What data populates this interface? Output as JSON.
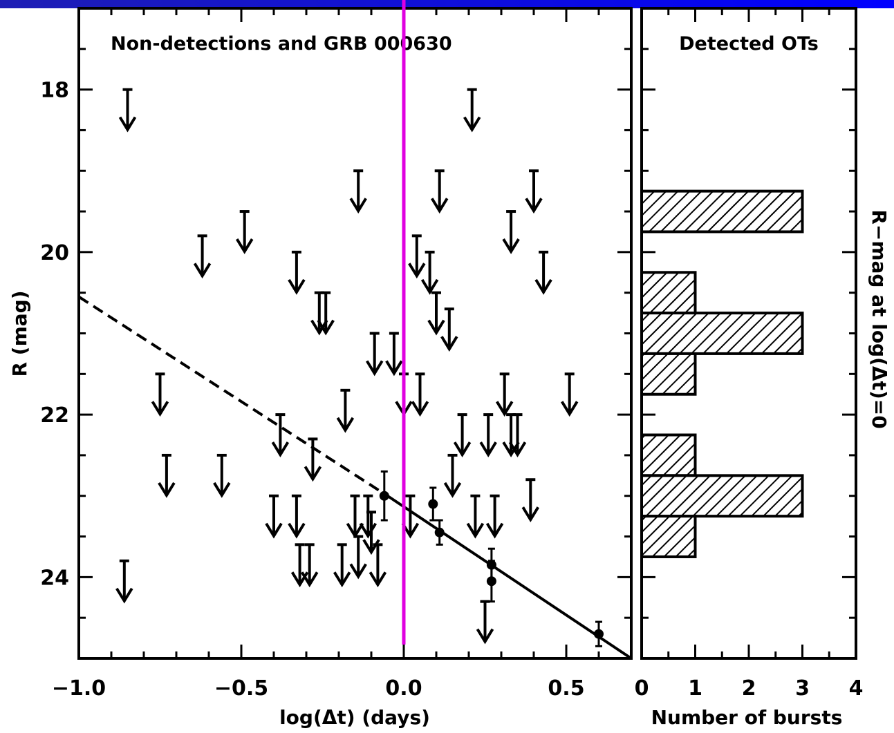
{
  "header_bar": {
    "gradient_start": "#1e1eb4",
    "gradient_end": "#0000ff"
  },
  "marker_line_color": "#e000e0",
  "chart_data": [
    {
      "type": "scatter",
      "title": "Non-detections and GRB 000630",
      "xlabel": "log(Δt) (days)",
      "ylabel": "R (mag)",
      "xlim": [
        -1.0,
        0.7
      ],
      "ylim": [
        25.0,
        17.0
      ],
      "y_inverted": true,
      "x_ticks": [
        "-1.0",
        "-0.5",
        "0.0",
        "0.5"
      ],
      "x_tick_values": [
        -1.0,
        -0.5,
        0.0,
        0.5
      ],
      "y_ticks": [
        "18",
        "20",
        "22",
        "24"
      ],
      "y_tick_values": [
        18,
        20,
        22,
        24
      ],
      "vertical_marker_x": 0.0,
      "series": [
        {
          "kind": "upper_limits",
          "points": [
            {
              "x": -0.85,
              "y": 18.0
            },
            {
              "x": 0.21,
              "y": 18.0
            },
            {
              "x": -0.14,
              "y": 19.0
            },
            {
              "x": 0.11,
              "y": 19.0
            },
            {
              "x": 0.4,
              "y": 19.0
            },
            {
              "x": -0.49,
              "y": 19.5
            },
            {
              "x": 0.33,
              "y": 19.5
            },
            {
              "x": -0.62,
              "y": 19.8
            },
            {
              "x": 0.04,
              "y": 19.8
            },
            {
              "x": -0.33,
              "y": 20.0
            },
            {
              "x": 0.08,
              "y": 20.0
            },
            {
              "x": 0.43,
              "y": 20.0
            },
            {
              "x": -0.26,
              "y": 20.5
            },
            {
              "x": -0.24,
              "y": 20.5
            },
            {
              "x": 0.1,
              "y": 20.5
            },
            {
              "x": 0.14,
              "y": 20.7
            },
            {
              "x": -0.09,
              "y": 21.0
            },
            {
              "x": -0.03,
              "y": 21.0
            },
            {
              "x": -0.75,
              "y": 21.5
            },
            {
              "x": 0.0,
              "y": 21.5
            },
            {
              "x": 0.05,
              "y": 21.5
            },
            {
              "x": 0.31,
              "y": 21.5
            },
            {
              "x": 0.51,
              "y": 21.5
            },
            {
              "x": -0.18,
              "y": 21.7
            },
            {
              "x": -0.38,
              "y": 22.0
            },
            {
              "x": 0.18,
              "y": 22.0
            },
            {
              "x": 0.26,
              "y": 22.0
            },
            {
              "x": 0.33,
              "y": 22.0
            },
            {
              "x": 0.35,
              "y": 22.0
            },
            {
              "x": -0.28,
              "y": 22.3
            },
            {
              "x": -0.73,
              "y": 22.5
            },
            {
              "x": -0.56,
              "y": 22.5
            },
            {
              "x": 0.15,
              "y": 22.5
            },
            {
              "x": 0.39,
              "y": 22.8
            },
            {
              "x": -0.4,
              "y": 23.0
            },
            {
              "x": -0.33,
              "y": 23.0
            },
            {
              "x": -0.15,
              "y": 23.0
            },
            {
              "x": -0.11,
              "y": 23.0
            },
            {
              "x": 0.02,
              "y": 23.0
            },
            {
              "x": 0.22,
              "y": 23.0
            },
            {
              "x": 0.28,
              "y": 23.0
            },
            {
              "x": -0.1,
              "y": 23.2
            },
            {
              "x": -0.14,
              "y": 23.5
            },
            {
              "x": -0.32,
              "y": 23.6
            },
            {
              "x": -0.29,
              "y": 23.6
            },
            {
              "x": -0.19,
              "y": 23.6
            },
            {
              "x": -0.08,
              "y": 23.6
            },
            {
              "x": -0.86,
              "y": 23.8
            },
            {
              "x": 0.25,
              "y": 24.3
            }
          ]
        },
        {
          "kind": "detections",
          "name": "GRB 000630",
          "points": [
            {
              "x": -0.06,
              "y": 23.0,
              "err": 0.3
            },
            {
              "x": 0.09,
              "y": 23.1,
              "err": 0.2
            },
            {
              "x": 0.11,
              "y": 23.45,
              "err": 0.15
            },
            {
              "x": 0.27,
              "y": 23.85,
              "err": 0.2
            },
            {
              "x": 0.27,
              "y": 24.05,
              "err": 0.25
            },
            {
              "x": 0.6,
              "y": 24.7,
              "err": 0.15
            }
          ]
        },
        {
          "kind": "fit",
          "solid": {
            "x": [
              -0.05,
              0.7
            ],
            "y": [
              23.0,
              25.0
            ]
          },
          "dashed": {
            "x": [
              -1.0,
              -0.05
            ],
            "y": [
              20.55,
              23.0
            ]
          }
        }
      ]
    },
    {
      "type": "bar",
      "orientation": "horizontal",
      "title": "Detected OTs",
      "xlabel": "Number of bursts",
      "ylabel_right": "R−mag at log(Δt)=0",
      "xlim": [
        0,
        4
      ],
      "x_ticks": [
        "0",
        "1",
        "2",
        "3",
        "4"
      ],
      "x_tick_values": [
        0,
        1,
        2,
        3,
        4
      ],
      "bins": [
        {
          "y_from": 19.25,
          "y_to": 19.75,
          "count": 3
        },
        {
          "y_from": 19.75,
          "y_to": 20.25,
          "count": 0
        },
        {
          "y_from": 20.25,
          "y_to": 20.75,
          "count": 1
        },
        {
          "y_from": 20.75,
          "y_to": 21.25,
          "count": 3
        },
        {
          "y_from": 21.25,
          "y_to": 21.75,
          "count": 1
        },
        {
          "y_from": 21.75,
          "y_to": 22.25,
          "count": 0
        },
        {
          "y_from": 22.25,
          "y_to": 22.75,
          "count": 1
        },
        {
          "y_from": 22.75,
          "y_to": 23.25,
          "count": 3
        },
        {
          "y_from": 23.25,
          "y_to": 23.75,
          "count": 1
        }
      ]
    }
  ]
}
